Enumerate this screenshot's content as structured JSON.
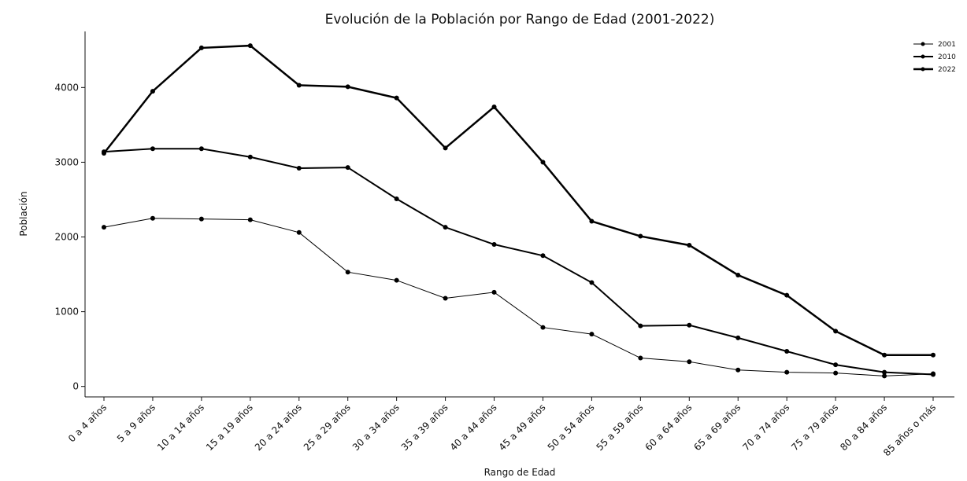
{
  "chart_data": {
    "type": "line",
    "title": "Evolución de la Población por Rango de Edad (2001-2022)",
    "xlabel": "Rango de Edad",
    "ylabel": "Población",
    "categories": [
      "0 a 4 años",
      "5 a 9 años",
      "10 a 14 años",
      "15 a 19 años",
      "20 a 24 años",
      "25 a 29 años",
      "30 a 34 años",
      "35 a 39 años",
      "40 a 44 años",
      "45 a 49 años",
      "50 a 54 años",
      "55 a 59 años",
      "60 a 64 años",
      "65 a 69 años",
      "70 a 74 años",
      "75 a 79 años",
      "80 a 84 años",
      "85 años o más"
    ],
    "series": [
      {
        "name": "2001",
        "color": "#000000",
        "values": [
          2130,
          2250,
          2240,
          2230,
          2060,
          1530,
          1420,
          1180,
          1260,
          790,
          700,
          380,
          330,
          220,
          190,
          180,
          140,
          170
        ]
      },
      {
        "name": "2010",
        "color": "#000000",
        "values": [
          3140,
          3180,
          3180,
          3070,
          2920,
          2930,
          2510,
          2130,
          1900,
          1750,
          1390,
          810,
          820,
          650,
          470,
          290,
          190,
          160
        ]
      },
      {
        "name": "2022",
        "color": "#000000",
        "values": [
          3120,
          3950,
          4530,
          4560,
          4030,
          4010,
          3860,
          3190,
          3740,
          3000,
          2210,
          2010,
          1890,
          1490,
          1220,
          740,
          420,
          420
        ]
      }
    ],
    "ylim": [
      -140,
      4750
    ],
    "yticks": [
      0,
      1000,
      2000,
      3000,
      4000
    ],
    "grid": false,
    "legend": "upper right"
  }
}
